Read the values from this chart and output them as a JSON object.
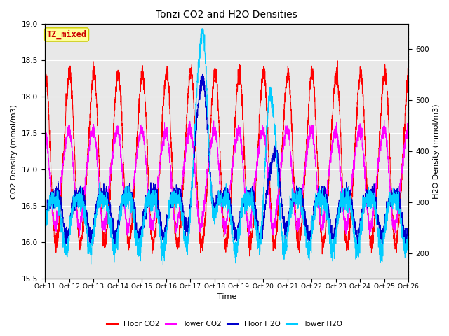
{
  "title": "Tonzi CO2 and H2O Densities",
  "xlabel": "Time",
  "ylabel_left": "CO2 Density (mmol/m3)",
  "ylabel_right": "H2O Density (mmol/m3)",
  "annotation": "TZ_mixed",
  "ylim_left": [
    15.5,
    19.0
  ],
  "ylim_right": [
    150,
    650
  ],
  "xtick_labels": [
    "Oct 11",
    "Oct 12",
    "Oct 13",
    "Oct 14",
    "Oct 15",
    "Oct 16",
    "Oct 17",
    "Oct 18",
    "Oct 19",
    "Oct 20",
    "Oct 21",
    "Oct 22",
    "Oct 23",
    "Oct 24",
    "Oct 25",
    "Oct 26"
  ],
  "colors": {
    "floor_co2": "#ff0000",
    "tower_co2": "#ff00ff",
    "floor_h2o": "#0000cc",
    "tower_h2o": "#00ccff"
  },
  "legend_labels": [
    "Floor CO2",
    "Tower CO2",
    "Floor H2O",
    "Tower H2O"
  ],
  "plot_bg_color": "#e8e8e8",
  "fig_bg_color": "#ffffff",
  "annotation_box_color": "#ffff99",
  "annotation_text_color": "#cc0000",
  "annotation_edge_color": "#cccc00",
  "grid_color": "#ffffff",
  "n_points": 3600,
  "seed": 42
}
